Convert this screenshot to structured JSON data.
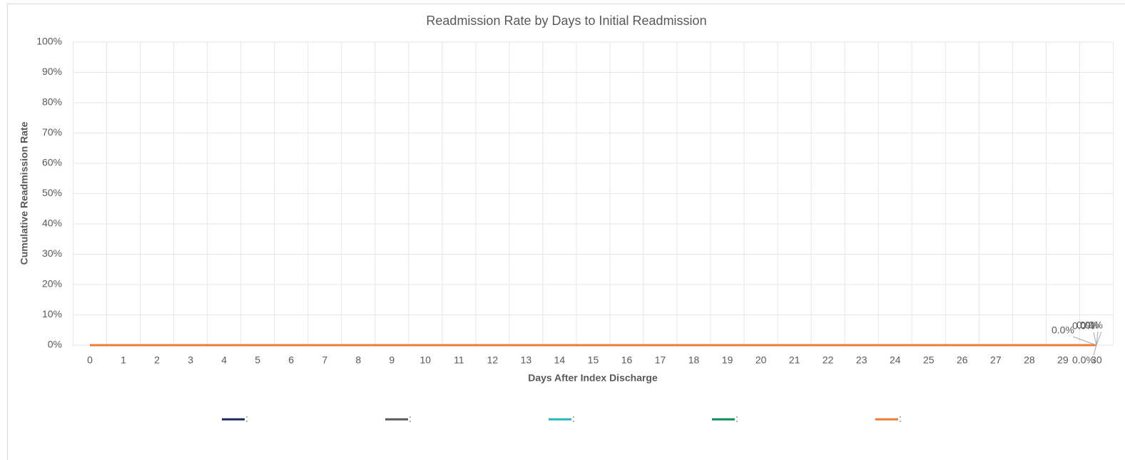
{
  "chart_data": {
    "type": "line",
    "title": "Readmission Rate by Days to Initial Readmission",
    "xlabel": "Days After Index Discharge",
    "ylabel": "Cumulative Readmission Rate",
    "categories": [
      "0",
      "1",
      "2",
      "3",
      "4",
      "5",
      "6",
      "7",
      "8",
      "9",
      "10",
      "11",
      "12",
      "13",
      "14",
      "15",
      "16",
      "17",
      "18",
      "19",
      "20",
      "21",
      "22",
      "23",
      "24",
      "25",
      "26",
      "27",
      "28",
      "29",
      "30"
    ],
    "ylim": [
      0,
      100
    ],
    "yticks": [
      {
        "value": 0,
        "label": "0%"
      },
      {
        "value": 10,
        "label": "10%"
      },
      {
        "value": 20,
        "label": "20%"
      },
      {
        "value": 30,
        "label": "30%"
      },
      {
        "value": 40,
        "label": "40%"
      },
      {
        "value": 50,
        "label": "50%"
      },
      {
        "value": 60,
        "label": "60%"
      },
      {
        "value": 70,
        "label": "70%"
      },
      {
        "value": 80,
        "label": "80%"
      },
      {
        "value": 90,
        "label": "90%"
      },
      {
        "value": 100,
        "label": "100%"
      }
    ],
    "grid": true,
    "legend": "bottom",
    "series": [
      {
        "name": ":",
        "color": "#1f2a5c",
        "values": [
          0,
          0,
          0,
          0,
          0,
          0,
          0,
          0,
          0,
          0,
          0,
          0,
          0,
          0,
          0,
          0,
          0,
          0,
          0,
          0,
          0,
          0,
          0,
          0,
          0,
          0,
          0,
          0,
          0,
          0,
          0
        ],
        "value_labels": [
          null,
          null,
          null,
          null,
          null,
          null,
          null,
          null,
          null,
          null,
          null,
          null,
          null,
          null,
          null,
          null,
          null,
          null,
          null,
          null,
          null,
          null,
          null,
          null,
          null,
          null,
          null,
          null,
          null,
          null,
          "0.0%"
        ]
      },
      {
        "name": ":",
        "color": "#595959",
        "values": [
          0,
          0,
          0,
          0,
          0,
          0,
          0,
          0,
          0,
          0,
          0,
          0,
          0,
          0,
          0,
          0,
          0,
          0,
          0,
          0,
          0,
          0,
          0,
          0,
          0,
          0,
          0,
          0,
          0,
          0,
          0
        ],
        "value_labels": [
          null,
          null,
          null,
          null,
          null,
          null,
          null,
          null,
          null,
          null,
          null,
          null,
          null,
          null,
          null,
          null,
          null,
          null,
          null,
          null,
          null,
          null,
          null,
          null,
          null,
          null,
          null,
          null,
          null,
          null,
          "0.0%"
        ]
      },
      {
        "name": ":",
        "color": "#2bb5b8",
        "values": [
          0,
          0,
          0,
          0,
          0,
          0,
          0,
          0,
          0,
          0,
          0,
          0,
          0,
          0,
          0,
          0,
          0,
          0,
          0,
          0,
          0,
          0,
          0,
          0,
          0,
          0,
          0,
          0,
          0,
          0,
          0
        ],
        "value_labels": [
          null,
          null,
          null,
          null,
          null,
          null,
          null,
          null,
          null,
          null,
          null,
          null,
          null,
          null,
          null,
          null,
          null,
          null,
          null,
          null,
          null,
          null,
          null,
          null,
          null,
          null,
          null,
          null,
          null,
          null,
          "0.0%"
        ]
      },
      {
        "name": ":",
        "color": "#0f8c5a",
        "values": [
          0,
          0,
          0,
          0,
          0,
          0,
          0,
          0,
          0,
          0,
          0,
          0,
          0,
          0,
          0,
          0,
          0,
          0,
          0,
          0,
          0,
          0,
          0,
          0,
          0,
          0,
          0,
          0,
          0,
          0,
          0
        ],
        "value_labels": [
          null,
          null,
          null,
          null,
          null,
          null,
          null,
          null,
          null,
          null,
          null,
          null,
          null,
          null,
          null,
          null,
          null,
          null,
          null,
          null,
          null,
          null,
          null,
          null,
          null,
          null,
          null,
          null,
          null,
          null,
          "0.0%"
        ]
      },
      {
        "name": ":",
        "color": "#ed7d31",
        "values": [
          0,
          0,
          0,
          0,
          0,
          0,
          0,
          0,
          0,
          0,
          0,
          0,
          0,
          0,
          0,
          0,
          0,
          0,
          0,
          0,
          0,
          0,
          0,
          0,
          0,
          0,
          0,
          0,
          0,
          0,
          0
        ],
        "value_labels": [
          null,
          null,
          null,
          null,
          null,
          null,
          null,
          null,
          null,
          null,
          null,
          null,
          null,
          null,
          null,
          null,
          null,
          null,
          null,
          null,
          null,
          null,
          null,
          null,
          null,
          null,
          null,
          null,
          null,
          null,
          "0.0%"
        ]
      }
    ]
  }
}
